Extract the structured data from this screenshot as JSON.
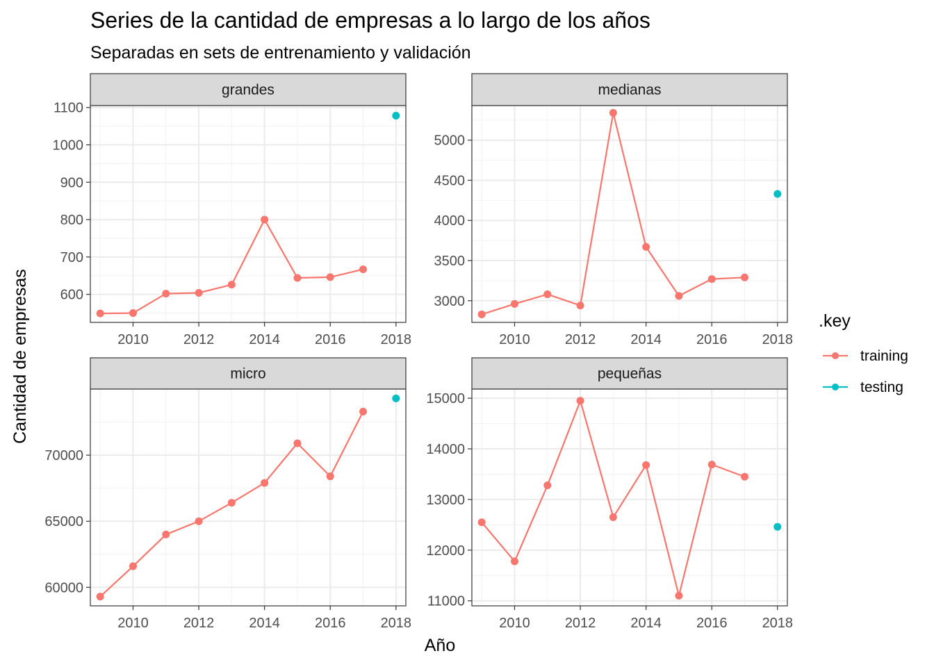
{
  "chart_data": {
    "type": "line",
    "title": "Series de la cantidad de empresas a lo largo de los años",
    "subtitle": "Separadas en sets de entrenamiento y validación",
    "xlabel": "Año",
    "ylabel": "Cantidad de empresas",
    "legend": {
      "title": ".key",
      "placement": "right",
      "entries": [
        {
          "name": "training",
          "color": "#F8766D"
        },
        {
          "name": "testing",
          "color": "#00BFC4"
        }
      ]
    },
    "grid": true,
    "x_ticks": [
      "2010",
      "2012",
      "2014",
      "2016",
      "2018"
    ],
    "xlim": [
      2008.7,
      2018.3
    ],
    "panels": [
      {
        "name": "grandes",
        "ylim": [
          525,
          1105
        ],
        "y_ticks": [
          600,
          700,
          800,
          900,
          1000,
          1100
        ],
        "y_tick_labels": [
          "600",
          "700",
          "800",
          "900",
          "1000",
          "1100"
        ],
        "training": {
          "x": [
            2009,
            2010,
            2011,
            2012,
            2013,
            2014,
            2015,
            2016,
            2017
          ],
          "y": [
            549,
            550,
            602,
            604,
            626,
            800,
            644,
            646,
            667
          ]
        },
        "testing": {
          "x": [
            2018
          ],
          "y": [
            1078
          ]
        }
      },
      {
        "name": "medianas",
        "ylim": [
          2730,
          5430
        ],
        "y_ticks": [
          3000,
          3500,
          4000,
          4500,
          5000
        ],
        "y_tick_labels": [
          "3000",
          "3500",
          "4000",
          "4500",
          "5000"
        ],
        "training": {
          "x": [
            2009,
            2010,
            2011,
            2012,
            2013,
            2014,
            2015,
            2016,
            2017
          ],
          "y": [
            2830,
            2960,
            3080,
            2940,
            5340,
            3670,
            3060,
            3270,
            3290
          ]
        },
        "testing": {
          "x": [
            2018
          ],
          "y": [
            4330
          ]
        }
      },
      {
        "name": "micro",
        "ylim": [
          58600,
          75000
        ],
        "y_ticks": [
          60000,
          65000,
          70000
        ],
        "y_tick_labels": [
          "60000",
          "65000",
          "70000"
        ],
        "training": {
          "x": [
            2009,
            2010,
            2011,
            2012,
            2013,
            2014,
            2015,
            2016,
            2017
          ],
          "y": [
            59300,
            61600,
            64000,
            65000,
            66400,
            67900,
            70900,
            68400,
            73300
          ]
        },
        "testing": {
          "x": [
            2018
          ],
          "y": [
            74300
          ]
        }
      },
      {
        "name": "pequeñas",
        "ylim": [
          10900,
          15180
        ],
        "y_ticks": [
          11000,
          12000,
          13000,
          14000,
          15000
        ],
        "y_tick_labels": [
          "11000",
          "12000",
          "13000",
          "14000",
          "15000"
        ],
        "training": {
          "x": [
            2009,
            2010,
            2011,
            2012,
            2013,
            2014,
            2015,
            2016,
            2017
          ],
          "y": [
            12550,
            11780,
            13280,
            14950,
            12650,
            13680,
            11100,
            13690,
            13450
          ]
        },
        "testing": {
          "x": [
            2018
          ],
          "y": [
            12460
          ]
        }
      }
    ]
  }
}
